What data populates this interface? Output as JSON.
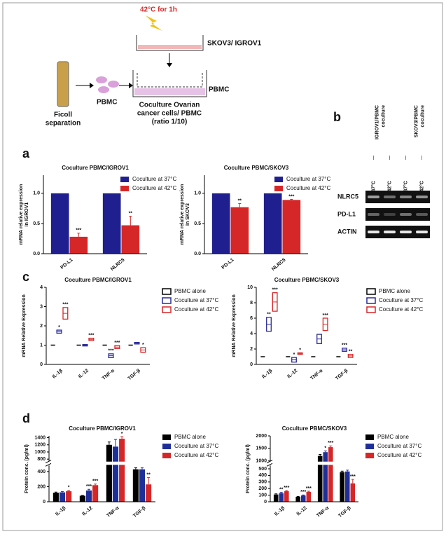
{
  "schematic": {
    "heat": "42°C for 1h",
    "insert_label": "SKOV3/ IGROV1",
    "well_label": "PBMC",
    "tube_label": [
      "Ficoll",
      "separation"
    ],
    "cells_label": "PBMC",
    "coculture_label": [
      "Coculture Ovarian",
      "cancer cells/ PBMC",
      "(ratio 1/10)"
    ]
  },
  "panel_labels": {
    "a": "a",
    "b": "b",
    "c": "c",
    "d": "d"
  },
  "blot": {
    "groups": [
      [
        "IGROV1/PBMC",
        "coculture"
      ],
      [
        "SKOV3/PBMC",
        "coculture"
      ]
    ],
    "lanes": [
      "37°C",
      "42°C",
      "37°C",
      "42°C"
    ],
    "rows": [
      "NLRC5",
      "PD-L1",
      "ACTIN"
    ]
  },
  "chart_data": [
    {
      "type": "bar",
      "title": "Coculture PBMC/IGROV1",
      "ylabel": [
        "mRNA relative expression",
        "in IGROV1"
      ],
      "categories": [
        "PD-L1",
        "NLRC5"
      ],
      "series": [
        {
          "name": "Coculture at 37°C",
          "color": "#1f1f8f",
          "values": [
            1,
            1
          ],
          "errors": [
            null,
            null
          ],
          "annotations": [
            null,
            null
          ]
        },
        {
          "name": "Coculture at 42°C",
          "color": "#d62728",
          "values": [
            0.28,
            0.47
          ],
          "errors": [
            0.06,
            0.15
          ],
          "annotations": [
            "***",
            "**"
          ]
        }
      ],
      "ylim": [
        0,
        1.3
      ],
      "yticks": [
        {
          "value": 0,
          "label": "0.0"
        },
        {
          "value": 0.5,
          "label": "0.5"
        },
        {
          "value": 1,
          "label": "1.0"
        }
      ]
    },
    {
      "type": "bar",
      "title": "Coculture PBMC/SKOV3",
      "ylabel": [
        "mRNA relative expression",
        "in SKOV3"
      ],
      "categories": [
        "PD-L1",
        "NLRC5"
      ],
      "series": [
        {
          "name": "Coculture at 37°C",
          "color": "#1f1f8f",
          "values": [
            1,
            1
          ],
          "errors": [
            null,
            null
          ],
          "annotations": [
            null,
            null
          ]
        },
        {
          "name": "Coculture at 42°C",
          "color": "#d62728",
          "values": [
            0.77,
            0.89
          ],
          "errors": [
            0.06,
            0.01
          ],
          "annotations": [
            "**",
            "***"
          ]
        }
      ],
      "ylim": [
        0,
        1.3
      ],
      "yticks": [
        {
          "value": 0,
          "label": "0.0"
        },
        {
          "value": 0.5,
          "label": "0.5"
        },
        {
          "value": 1,
          "label": "1.0"
        }
      ]
    },
    {
      "type": "range",
      "title": "Coculture PBMC/IGROV1",
      "ylabel": [
        "mRNA Relative Expression"
      ],
      "categories": [
        "IL-1β",
        "IL-12",
        "TNF-α",
        "TGF-β"
      ],
      "series": [
        {
          "name": "PBMC alone",
          "color": "#000000",
          "values": [
            1,
            1,
            1,
            1
          ],
          "errors": [
            null,
            null,
            null,
            null
          ],
          "annotations": [
            null,
            null,
            null,
            null
          ]
        },
        {
          "name": "Coculture at 37°C",
          "color": "#2a2a9a",
          "values": [
            1.7,
            1.0,
            0.45,
            1.1
          ],
          "errors": [
            0.08,
            0.03,
            0.1,
            0.04
          ],
          "annotations": [
            "*",
            null,
            "***",
            null
          ]
        },
        {
          "name": "Coculture at 42°C",
          "color": "#d62728",
          "values": [
            2.65,
            1.3,
            0.9,
            0.75
          ],
          "errors": [
            0.3,
            0.06,
            0.08,
            0.12
          ],
          "annotations": [
            "***",
            "***",
            "***",
            "*"
          ]
        }
      ],
      "ylim": [
        0,
        4
      ],
      "yticks": [
        0,
        1,
        2,
        3,
        4
      ]
    },
    {
      "type": "range",
      "title": "Coculture PBMC/SKOV3",
      "ylabel": [
        "mRNA Relative Expression"
      ],
      "categories": [
        "IL-1β",
        "IL-12",
        "TNF-α",
        "TGF-β"
      ],
      "series": [
        {
          "name": "PBMC alone",
          "color": "#000000",
          "values": [
            1,
            1,
            1,
            1
          ],
          "errors": [
            null,
            null,
            null,
            null
          ],
          "annotations": [
            null,
            null,
            null,
            null
          ]
        },
        {
          "name": "Coculture at 37°C",
          "color": "#2a2a9a",
          "values": [
            5.2,
            0.6,
            3.3,
            1.9
          ],
          "errors": [
            0.9,
            0.3,
            0.6,
            0.2
          ],
          "annotations": [
            "**",
            "*",
            null,
            "***"
          ]
        },
        {
          "name": "Coculture at 42°C",
          "color": "#d62728",
          "values": [
            8.1,
            1.4,
            5.2,
            1.1
          ],
          "errors": [
            1.2,
            0.1,
            0.8,
            0.2
          ],
          "annotations": [
            "***",
            "*",
            "***",
            "**"
          ]
        }
      ],
      "ylim": [
        0,
        10
      ],
      "yticks": [
        0,
        2,
        4,
        6,
        8,
        10
      ]
    },
    {
      "type": "bar",
      "title": "Coculture PBMC/IGROV1",
      "ylabel": [
        "Protein conc. (pg/ml)"
      ],
      "categories": [
        "IL-1β",
        "IL-12",
        "TNF-α",
        "TGF-β"
      ],
      "series": [
        {
          "name": "PBMC alone",
          "color": "#000000",
          "values": [
            120,
            80,
            1200,
            430
          ],
          "errors": [
            8,
            5,
            80,
            20
          ],
          "annotations": [
            null,
            null,
            null,
            null
          ]
        },
        {
          "name": "Coculture at 37°C",
          "color": "#1f2f9a",
          "values": [
            125,
            150,
            1150,
            430
          ],
          "errors": [
            10,
            15,
            200,
            20
          ],
          "annotations": [
            null,
            "***",
            null,
            null
          ]
        },
        {
          "name": "Coculture at 42°C",
          "color": "#d62728",
          "values": [
            140,
            220,
            1370,
            230
          ],
          "errors": [
            10,
            15,
            60,
            90
          ],
          "annotations": [
            "*",
            "***",
            "*",
            "**"
          ]
        }
      ],
      "ylim_segments": [
        [
          0,
          480
        ],
        [
          750,
          1450
        ]
      ],
      "yticks": [
        0,
        200,
        400,
        800,
        1000,
        1200,
        1400
      ]
    },
    {
      "type": "bar",
      "title": "Coculture PBMC/SKOV3",
      "ylabel": [
        "Protein conc. (pg/ml)"
      ],
      "categories": [
        "IL-1β",
        "IL-12",
        "TNF-α",
        "TGF-β"
      ],
      "series": [
        {
          "name": "PBMC alone",
          "color": "#000000",
          "values": [
            110,
            75,
            1200,
            450
          ],
          "errors": [
            10,
            5,
            60,
            15
          ],
          "annotations": [
            null,
            null,
            null,
            null
          ]
        },
        {
          "name": "Coculture at 37°C",
          "color": "#1f2f9a",
          "values": [
            130,
            95,
            1350,
            460
          ],
          "errors": [
            12,
            8,
            50,
            20
          ],
          "annotations": [
            "**",
            "***",
            "*",
            null
          ]
        },
        {
          "name": "Coculture at 42°C",
          "color": "#d62728",
          "values": [
            160,
            150,
            1550,
            280
          ],
          "errors": [
            10,
            10,
            50,
            60
          ],
          "annotations": [
            "***",
            "***",
            "***",
            "***"
          ]
        }
      ],
      "ylim_segments": [
        [
          0,
          550
        ],
        [
          1000,
          2000
        ]
      ],
      "yticks": [
        0,
        100,
        200,
        300,
        400,
        500,
        1000,
        1500,
        2000
      ]
    }
  ]
}
